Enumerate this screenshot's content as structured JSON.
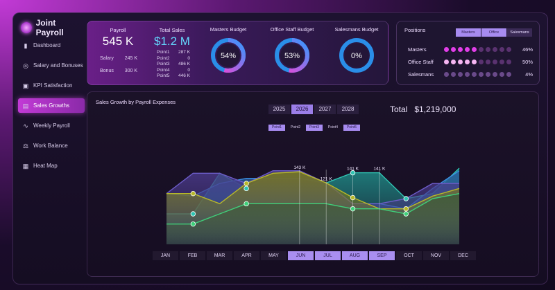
{
  "app": {
    "title": "Joint Payroll"
  },
  "sidebar": {
    "items": [
      {
        "label": "Dashboard",
        "icon": "bar-chart-icon",
        "active": false
      },
      {
        "label": "Salary and Bonuses",
        "icon": "coins-icon",
        "active": false
      },
      {
        "label": "KPI Satisfaction",
        "icon": "kpi-icon",
        "active": false
      },
      {
        "label": "Sales Growths",
        "icon": "growth-chart-icon",
        "active": true
      },
      {
        "label": "Weekly Payroll",
        "icon": "line-chart-icon",
        "active": false
      },
      {
        "label": "Work Balance",
        "icon": "scale-icon",
        "active": false
      },
      {
        "label": "Heat Map",
        "icon": "map-icon",
        "active": false
      }
    ]
  },
  "payroll": {
    "label": "Payroll",
    "value": "545 K",
    "rows": [
      {
        "label": "Salary",
        "value": "245 K"
      },
      {
        "label": "Bonus",
        "value": "300 K"
      }
    ]
  },
  "sales": {
    "label": "Total Sales",
    "value": "$1.2 M",
    "points": [
      {
        "label": "Point1",
        "value": "287 K"
      },
      {
        "label": "Point2",
        "value": "0"
      },
      {
        "label": "Point3",
        "value": "486 K"
      },
      {
        "label": "Point4",
        "value": "0"
      },
      {
        "label": "Point5",
        "value": "446 K"
      }
    ]
  },
  "budgets": [
    {
      "label": "Masters Budget",
      "value": "54%",
      "fraction": 0.54
    },
    {
      "label": "Office Staff Budget",
      "value": "53%",
      "fraction": 0.53
    },
    {
      "label": "Salesmans Budget",
      "value": "0%",
      "fraction": 0.0
    }
  ],
  "positions": {
    "title": "Positions",
    "tabs": [
      {
        "label": "Masters",
        "on": true
      },
      {
        "label": "Office",
        "on": true
      },
      {
        "label": "Salesmans",
        "on": false
      }
    ],
    "rows": [
      {
        "label": "Masters",
        "value": "46%",
        "filled": 5,
        "total": 10,
        "color": "#e23ee8"
      },
      {
        "label": "Office Staff",
        "value": "50%",
        "filled": 5,
        "total": 10,
        "color": "#f6b6f2"
      },
      {
        "label": "Salesmans",
        "value": "4%",
        "filled": 0,
        "total": 10,
        "color": "#a97fd0"
      }
    ]
  },
  "chart": {
    "title": "Sales Growth by Payroll Expenses",
    "years": [
      {
        "label": "2025",
        "on": false
      },
      {
        "label": "2026",
        "on": true
      },
      {
        "label": "2027",
        "on": false
      },
      {
        "label": "2028",
        "on": false
      }
    ],
    "total_label": "Total",
    "total_value": "$1,219,000",
    "points": [
      {
        "label": "Point1",
        "on": true
      },
      {
        "label": "Point2",
        "on": false
      },
      {
        "label": "Point3",
        "on": true
      },
      {
        "label": "Point4",
        "on": false
      },
      {
        "label": "Point5",
        "on": true
      }
    ],
    "months": [
      {
        "label": "JAN",
        "on": false
      },
      {
        "label": "FEB",
        "on": false
      },
      {
        "label": "MAR",
        "on": false
      },
      {
        "label": "APR",
        "on": false
      },
      {
        "label": "MAY",
        "on": false
      },
      {
        "label": "JUN",
        "on": true
      },
      {
        "label": "JUL",
        "on": true
      },
      {
        "label": "AUG",
        "on": true
      },
      {
        "label": "SEP",
        "on": true
      },
      {
        "label": "OCT",
        "on": false
      },
      {
        "label": "NOV",
        "on": false
      },
      {
        "label": "DEC",
        "on": false
      }
    ],
    "annotations": [
      {
        "index": 5,
        "label": "143 K"
      },
      {
        "index": 6,
        "label": "121 K"
      },
      {
        "index": 7,
        "label": "141 K"
      },
      {
        "index": 8,
        "label": "141 K"
      }
    ]
  },
  "chart_data": {
    "type": "area",
    "title": "Sales Growth by Payroll Expenses",
    "categories": [
      "JAN",
      "FEB",
      "MAR",
      "APR",
      "MAY",
      "JUN",
      "JUL",
      "AUG",
      "SEP",
      "OCT",
      "NOV",
      "DEC"
    ],
    "ylim": [
      0,
      180
    ],
    "series": [
      {
        "values": [
          60,
          60,
          140,
          110,
          140,
          143,
          121,
          141,
          141,
          90,
          100,
          150
        ],
        "color": "#2fc4b2",
        "fill": "#1f8f8a"
      },
      {
        "values": [
          100,
          95,
          120,
          130,
          130,
          130,
          121,
          80,
          80,
          70,
          110,
          145
        ],
        "color": "#3a8ee0",
        "fill": "#2b5fa0"
      },
      {
        "values": [
          100,
          140,
          140,
          120,
          145,
          145,
          121,
          80,
          80,
          90,
          120,
          120
        ],
        "color": "#6c5cc8",
        "fill": "#4a3a8a"
      },
      {
        "values": [
          100,
          100,
          80,
          120,
          140,
          143,
          121,
          92,
          70,
          70,
          95,
          110
        ],
        "color": "#b7b82a",
        "fill": "#7a7a1a"
      },
      {
        "values": [
          40,
          40,
          60,
          80,
          80,
          80,
          80,
          70,
          70,
          60,
          90,
          100
        ],
        "color": "#3fd07a",
        "fill": "#3e5a3a"
      }
    ]
  }
}
